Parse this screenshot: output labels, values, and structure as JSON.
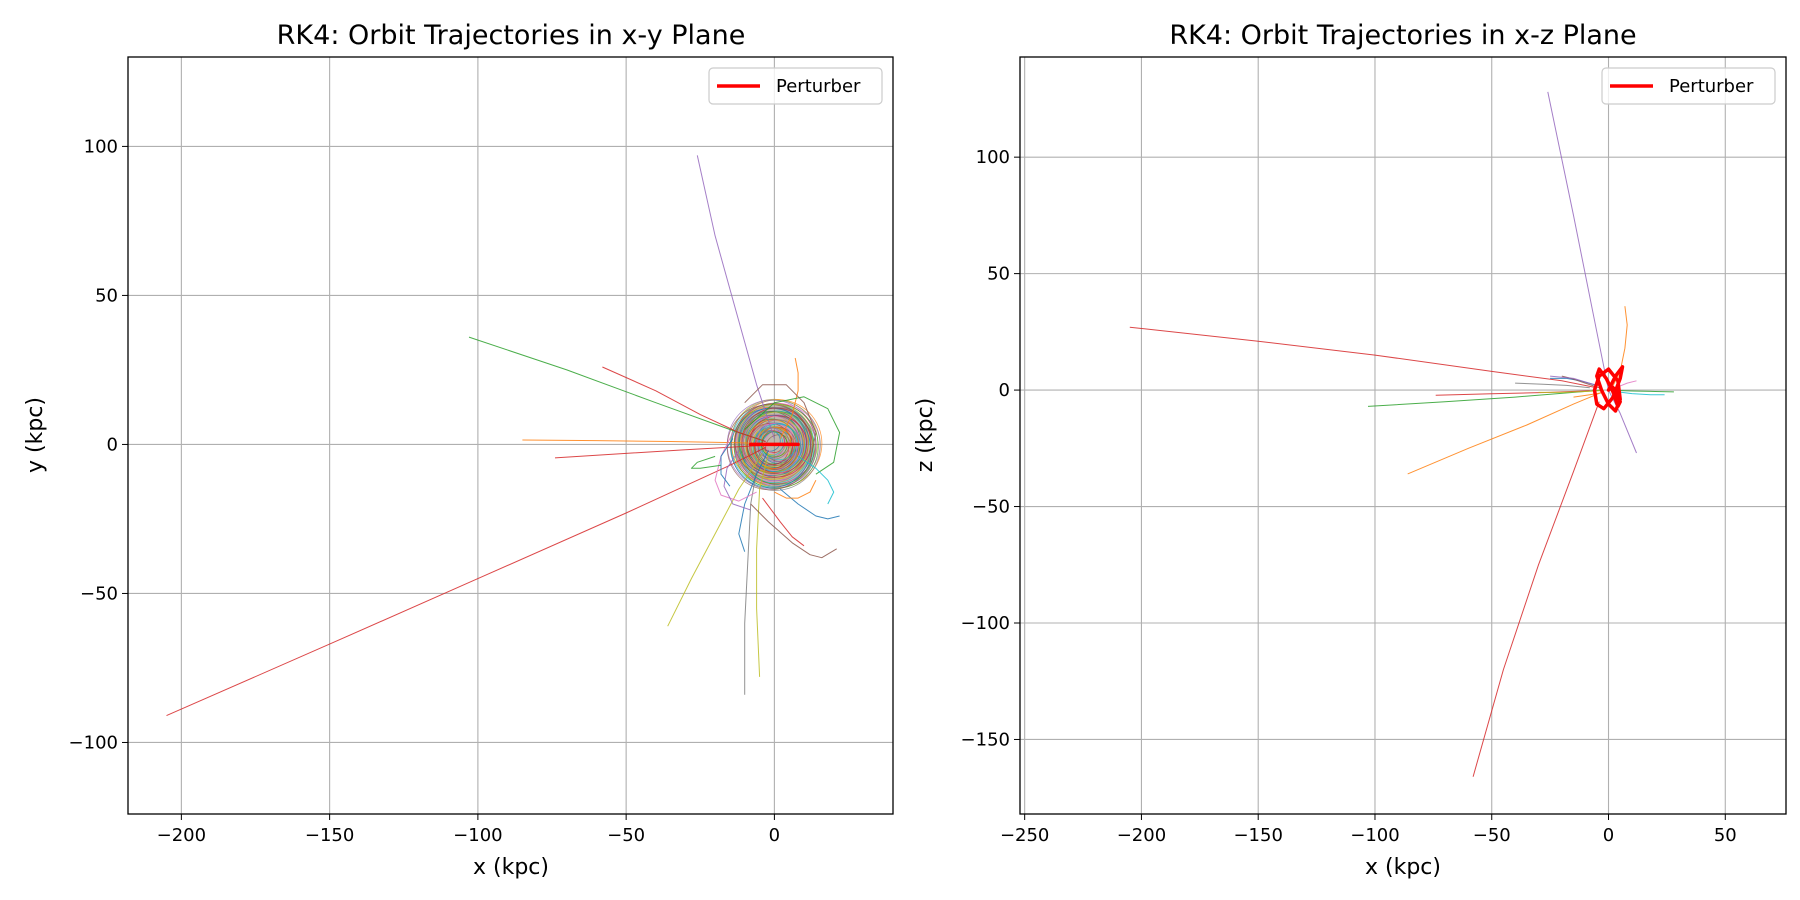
{
  "chart_data": [
    {
      "type": "line",
      "title": "RK4: Orbit Trajectories in x-y Plane",
      "xlabel": "x (kpc)",
      "ylabel": "y (kpc)",
      "xlim": [
        -218,
        40
      ],
      "ylim": [
        -124,
        130
      ],
      "xticks": [
        -200,
        -150,
        -100,
        -50,
        0
      ],
      "yticks": [
        -100,
        -50,
        0,
        50,
        100
      ],
      "xtick_labels": [
        "−200",
        "−150",
        "−100",
        "−50",
        "0"
      ],
      "ytick_labels": [
        "−100",
        "−50",
        "0",
        "50",
        "100"
      ],
      "grid": true,
      "legend": {
        "placement": "top-right",
        "entries": [
          "Perturber"
        ]
      },
      "perturber": {
        "name": "Perturber",
        "color": "#ff0000",
        "x": [
          -8,
          8
        ],
        "y": [
          0,
          0
        ]
      },
      "cluster": {
        "center": [
          0,
          0
        ],
        "radius": 14
      },
      "series": [
        {
          "color": "#9467bd",
          "x": [
            -26,
            -20,
            -13,
            -6,
            0
          ],
          "y": [
            97,
            70,
            45,
            20,
            2
          ]
        },
        {
          "color": "#2ca02c",
          "x": [
            -103,
            -70,
            -40,
            -15,
            -3
          ],
          "y": [
            36,
            25,
            14,
            5,
            1
          ]
        },
        {
          "color": "#d62728",
          "x": [
            -58,
            -40,
            -25,
            -12,
            -3
          ],
          "y": [
            26,
            18,
            10,
            4,
            1
          ]
        },
        {
          "color": "#ff7f0e",
          "x": [
            -85,
            -60,
            -35,
            -12,
            -2
          ],
          "y": [
            1.5,
            1.3,
            1,
            0.6,
            0.2
          ]
        },
        {
          "color": "#d62728",
          "x": [
            -74,
            -50,
            -30,
            -12,
            -2
          ],
          "y": [
            -4.5,
            -3,
            -1.8,
            -0.8,
            -0.2
          ]
        },
        {
          "color": "#d62728",
          "x": [
            -205,
            -150,
            -100,
            -50,
            -15,
            -3
          ],
          "y": [
            -91,
            -67,
            -45,
            -23,
            -7,
            -1
          ]
        },
        {
          "color": "#bcbd22",
          "x": [
            -36,
            -28,
            -20,
            -12,
            -4
          ],
          "y": [
            -61,
            -45,
            -30,
            -15,
            -3
          ]
        },
        {
          "color": "#7f7f7f",
          "x": [
            -10,
            -10,
            -9,
            -8,
            -5
          ],
          "y": [
            -84,
            -60,
            -40,
            -20,
            -3
          ]
        },
        {
          "color": "#bcbd22",
          "x": [
            -5,
            -6,
            -6,
            -5,
            -2
          ],
          "y": [
            -78,
            -55,
            -35,
            -15,
            -3
          ]
        },
        {
          "color": "#ff7f0e",
          "x": [
            7,
            8,
            8,
            6,
            2
          ],
          "y": [
            29,
            24,
            18,
            10,
            2
          ]
        },
        {
          "color": "#1f77b4",
          "x": [
            -10,
            -12,
            -10,
            -6,
            -2
          ],
          "y": [
            -36,
            -30,
            -20,
            -10,
            -2
          ]
        },
        {
          "color": "#8c564b",
          "x": [
            -8,
            -2,
            6,
            12,
            16,
            21
          ],
          "y": [
            -20,
            -26,
            -33,
            -37,
            -38,
            -35
          ]
        },
        {
          "color": "#d62728",
          "x": [
            -4,
            2,
            6,
            10
          ],
          "y": [
            -18,
            -26,
            -31,
            -34
          ]
        },
        {
          "color": "#1f77b4",
          "x": [
            2,
            8,
            14,
            18,
            22
          ],
          "y": [
            -15,
            -20,
            -24,
            -25,
            -24
          ]
        },
        {
          "color": "#2ca02c",
          "x": [
            -10,
            0,
            10,
            18,
            22,
            20,
            14
          ],
          "y": [
            5,
            14,
            16,
            12,
            4,
            -6,
            -10
          ]
        },
        {
          "color": "#e377c2",
          "x": [
            -14,
            -18,
            -20,
            -18,
            -12,
            -6
          ],
          "y": [
            4,
            -4,
            -12,
            -17,
            -19,
            -16
          ]
        },
        {
          "color": "#8c564b",
          "x": [
            -10,
            -4,
            4,
            10,
            14,
            12
          ],
          "y": [
            14,
            20,
            20,
            14,
            4,
            -6
          ]
        },
        {
          "color": "#9467bd",
          "x": [
            -12,
            -16,
            -17,
            -14,
            -8
          ],
          "y": [
            -2,
            -8,
            -14,
            -20,
            -22
          ]
        },
        {
          "color": "#17becf",
          "x": [
            8,
            14,
            18,
            20,
            18
          ],
          "y": [
            -4,
            -8,
            -12,
            -16,
            -20
          ]
        },
        {
          "color": "#2ca02c",
          "x": [
            -20,
            -26,
            -28,
            -25,
            -18
          ],
          "y": [
            -4,
            -6,
            -8,
            -8,
            -7
          ]
        },
        {
          "color": "#1f77b4",
          "x": [
            -14,
            -18,
            -18,
            -15
          ],
          "y": [
            2,
            -4,
            -10,
            -14
          ]
        },
        {
          "color": "#ff7f0e",
          "x": [
            0,
            4,
            8,
            12,
            14
          ],
          "y": [
            -16,
            -18,
            -18,
            -16,
            -12
          ]
        }
      ]
    },
    {
      "type": "line",
      "title": "RK4: Orbit Trajectories in x-z Plane",
      "xlabel": "x (kpc)",
      "ylabel": "z (kpc)",
      "xlim": [
        -252,
        76
      ],
      "ylim": [
        -182,
        143
      ],
      "xticks": [
        -250,
        -200,
        -150,
        -100,
        -50,
        0,
        50
      ],
      "yticks": [
        -150,
        -100,
        -50,
        0,
        50,
        100
      ],
      "xtick_labels": [
        "−250",
        "−200",
        "−150",
        "−100",
        "−50",
        "0",
        "50"
      ],
      "ytick_labels": [
        "−150",
        "−100",
        "−50",
        "0",
        "50",
        "100"
      ],
      "grid": true,
      "legend": {
        "placement": "top-right",
        "entries": [
          "Perturber"
        ]
      },
      "perturber": {
        "name": "Perturber",
        "color": "#ff0000",
        "x": [
          0,
          3,
          6,
          5,
          2,
          -2,
          -5,
          -6,
          -4,
          0,
          4,
          5,
          3,
          0,
          -3,
          -5,
          -4,
          -1,
          2,
          4,
          5,
          3,
          0
        ],
        "z": [
          0,
          6,
          10,
          5,
          -3,
          -8,
          -6,
          0,
          6,
          9,
          4,
          -4,
          -9,
          -6,
          0,
          6,
          9,
          5,
          -1,
          -7,
          -5,
          0,
          3
        ]
      },
      "series": [
        {
          "color": "#9467bd",
          "x": [
            -26,
            -15,
            -5,
            0,
            5,
            12
          ],
          "z": [
            128,
            75,
            25,
            0,
            -10,
            -27
          ]
        },
        {
          "color": "#d62728",
          "x": [
            -205,
            -150,
            -100,
            -50,
            -20,
            -5
          ],
          "z": [
            27,
            21,
            15,
            8,
            4,
            1
          ]
        },
        {
          "color": "#d62728",
          "x": [
            -58,
            -45,
            -30,
            -15,
            -4
          ],
          "z": [
            -166,
            -120,
            -75,
            -35,
            -5
          ]
        },
        {
          "color": "#ff7f0e",
          "x": [
            -86,
            -60,
            -35,
            -15,
            -3
          ],
          "z": [
            -36,
            -25,
            -15,
            -6,
            -1
          ]
        },
        {
          "color": "#2ca02c",
          "x": [
            -103,
            -70,
            -40,
            -15,
            -3
          ],
          "z": [
            -7,
            -5,
            -3,
            -1,
            0
          ]
        },
        {
          "color": "#d62728",
          "x": [
            -74,
            -50,
            -25,
            -8
          ],
          "z": [
            -2.2,
            -1.6,
            -1,
            -0.3
          ]
        },
        {
          "color": "#ff7f0e",
          "x": [
            7,
            8,
            7,
            5,
            2
          ],
          "z": [
            36,
            28,
            18,
            8,
            2
          ]
        },
        {
          "color": "#2ca02c",
          "x": [
            0,
            10,
            20,
            28
          ],
          "z": [
            0,
            -0.4,
            -0.6,
            -0.8
          ]
        },
        {
          "color": "#1f77b4",
          "x": [
            -5,
            -12,
            -18,
            -22,
            -25
          ],
          "z": [
            2,
            4,
            5,
            5,
            5
          ]
        },
        {
          "color": "#8c564b",
          "x": [
            -4,
            -10,
            -16,
            -20
          ],
          "z": [
            1,
            3,
            5,
            6
          ]
        },
        {
          "color": "#17becf",
          "x": [
            2,
            10,
            18,
            24
          ],
          "z": [
            -0.5,
            -1.5,
            -2,
            -2
          ]
        },
        {
          "color": "#7f7f7f",
          "x": [
            -40,
            -28,
            -18,
            -8
          ],
          "z": [
            3,
            2.5,
            2,
            1
          ]
        },
        {
          "color": "#e377c2",
          "x": [
            3,
            8,
            12
          ],
          "z": [
            1,
            3,
            4
          ]
        },
        {
          "color": "#bcbd22",
          "x": [
            -30,
            -20,
            -10,
            -2
          ],
          "z": [
            -1,
            -1,
            -0.6,
            -0.2
          ]
        },
        {
          "color": "#9467bd",
          "x": [
            -25,
            -15,
            -5
          ],
          "z": [
            6,
            5,
            2
          ]
        },
        {
          "color": "#ff7f0e",
          "x": [
            -15,
            -8,
            -2
          ],
          "z": [
            -3,
            -2,
            -1
          ]
        }
      ]
    }
  ]
}
